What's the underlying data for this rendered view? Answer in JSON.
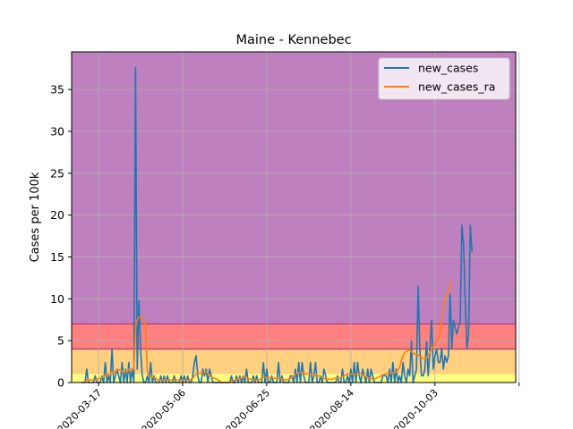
{
  "chart_data": {
    "type": "line",
    "title": "Maine - Kennebec",
    "xlabel": "",
    "ylabel": "Cases per 100k",
    "x_start": "2020-03-07",
    "x_end": "2020-11-16",
    "xlim": [
      "2020-03-01",
      "2020-11-20"
    ],
    "ylim": [
      0,
      39.5
    ],
    "yticks": [
      0,
      5,
      10,
      15,
      20,
      25,
      30,
      35
    ],
    "xticks": [
      "2020-03-17",
      "2020-05-06",
      "2020-06-25",
      "2020-08-14",
      "2020-10-03",
      "2020-11-22"
    ],
    "xtick_labels": [
      "2020-03-17",
      "2020-05-06",
      "2020-06-25",
      "2020-08-14",
      "2020-10-03",
      ""
    ],
    "grid": true,
    "legend_position": "top-right",
    "bands": [
      {
        "from": 0,
        "to": 1,
        "color": "#ffff80"
      },
      {
        "from": 1,
        "to": 4,
        "color": "#ffd080"
      },
      {
        "from": 4,
        "to": 7,
        "color": "#ff8080"
      },
      {
        "from": 7,
        "to": 39.5,
        "color": "#bf80bf"
      }
    ],
    "band_line_color": "#c0306e",
    "series": [
      {
        "name": "new_cases",
        "color": "#1f77b4",
        "values": [
          0,
          0,
          0,
          1.6,
          0,
          0,
          0,
          0,
          0.8,
          0,
          0,
          0,
          0.8,
          0,
          2.4,
          0,
          0.8,
          0,
          4.0,
          0,
          0.8,
          1.6,
          0.8,
          0,
          2.4,
          0,
          1.6,
          0,
          2.4,
          0,
          1.6,
          0,
          37.6,
          1.6,
          9.8,
          4.0,
          0.8,
          0,
          0,
          0.8,
          0,
          2.4,
          0,
          0.8,
          0,
          0,
          0,
          0.8,
          0,
          0.8,
          0,
          0.8,
          0,
          0,
          0,
          0.8,
          0,
          0,
          0,
          0.8,
          0,
          0.8,
          0,
          0.8,
          0,
          0,
          0.8,
          2.4,
          3.2,
          0.8,
          0,
          0,
          1.6,
          0.8,
          1.6,
          0,
          1.6,
          0.8,
          0,
          0,
          0,
          0,
          0,
          0,
          0,
          0,
          0,
          0,
          0,
          0.8,
          0,
          0,
          0.8,
          0,
          0.8,
          0,
          0.8,
          0,
          1.6,
          0,
          0,
          0,
          0.8,
          0,
          0.8,
          0,
          0,
          0,
          2.4,
          0,
          1.6,
          0,
          0,
          0.8,
          0,
          0,
          0,
          2.4,
          0,
          0.8,
          0,
          0,
          0,
          0,
          0.8,
          0.8,
          0,
          1.6,
          0,
          2.4,
          0,
          2.4,
          0.8,
          0,
          0,
          0,
          2.4,
          0,
          0.8,
          2.4,
          0,
          0,
          0.8,
          0,
          1.6,
          0.8,
          0,
          0,
          0,
          0,
          0,
          0,
          0.8,
          0,
          0,
          1.6,
          0,
          0,
          0.8,
          0,
          1.6,
          0,
          2.4,
          0,
          2.4,
          0.8,
          0,
          1.6,
          0.8,
          0,
          1.6,
          0,
          1.6,
          0.8,
          0,
          0,
          0,
          0,
          0,
          0.8,
          0.8,
          0.8,
          0,
          1.6,
          0,
          2.4,
          0,
          1.6,
          0,
          0.8,
          0,
          2.4,
          0.8,
          0,
          1.6,
          0.8,
          5.0,
          0,
          0.8,
          1.6,
          11.5,
          4.0,
          0.8,
          0.8,
          1.6,
          4.9,
          0.8,
          4.0,
          7.4,
          1.6,
          3.2,
          4.0,
          2.4,
          2.4,
          4.1,
          1.6,
          3.2,
          2.4,
          3.2,
          10.6,
          4.0,
          7.4,
          6.6,
          5.8,
          6.6,
          7.4,
          18.8,
          16.4,
          9.8,
          4.1,
          5.7,
          18.8,
          15.6
        ]
      },
      {
        "name": "new_cases_ra",
        "color": "#ff7f0e",
        "values": [
          0,
          0,
          0,
          0.3,
          0.3,
          0.3,
          0.3,
          0.3,
          0.3,
          0.3,
          0.5,
          0.5,
          0.6,
          0.6,
          0.9,
          0.9,
          1.0,
          1.0,
          1.4,
          1.2,
          1.3,
          1.5,
          1.5,
          1.5,
          1.4,
          1.2,
          1.4,
          1.3,
          1.6,
          1.4,
          1.4,
          1.6,
          6.6,
          7.5,
          7.8,
          7.9,
          7.8,
          7.3,
          6.7,
          1.4,
          0.8,
          0.7,
          0.6,
          0.6,
          0.5,
          0.3,
          0.3,
          0.3,
          0.3,
          0.3,
          0.3,
          0.3,
          0.3,
          0.3,
          0.3,
          0.3,
          0.3,
          0.3,
          0.3,
          0.3,
          0.3,
          0.3,
          0.3,
          0.3,
          0.3,
          0.4,
          0.5,
          0.8,
          1.0,
          1.1,
          1.1,
          1.1,
          1.2,
          1.2,
          1.3,
          1.1,
          0.8,
          0.7,
          0.6,
          0.5,
          0.4,
          0.3,
          0.2,
          0,
          0,
          0,
          0,
          0,
          0.1,
          0.2,
          0.2,
          0.3,
          0.4,
          0.4,
          0.5,
          0.5,
          0.6,
          0.6,
          0.6,
          0.5,
          0.4,
          0.4,
          0.3,
          0.3,
          0.3,
          0.3,
          0.4,
          0.5,
          0.6,
          0.6,
          0.6,
          0.6,
          0.6,
          0.6,
          0.5,
          0.5,
          0.5,
          0.5,
          0.5,
          0.4,
          0.4,
          0.3,
          0.3,
          0.4,
          0.5,
          0.6,
          0.8,
          1.0,
          1.1,
          1.2,
          1.2,
          1.2,
          1.1,
          1.0,
          1.0,
          1.0,
          1.0,
          1.0,
          0.9,
          0.8,
          0.8,
          0.8,
          0.7,
          0.6,
          0.5,
          0.4,
          0.4,
          0.4,
          0.4,
          0.4,
          0.5,
          0.5,
          0.5,
          0.5,
          0.6,
          0.7,
          0.8,
          0.9,
          1.0,
          1.0,
          1.0,
          1.0,
          1.0,
          1.0,
          1.0,
          1.0,
          1.0,
          0.9,
          0.8,
          0.7,
          0.6,
          0.5,
          0.5,
          0.4,
          0.4,
          0.5,
          0.6,
          0.7,
          0.8,
          0.9,
          1.0,
          1.0,
          1.1,
          1.1,
          1.2,
          1.2,
          1.2,
          1.3,
          1.5,
          1.8,
          2.6,
          3.2,
          3.6,
          3.7,
          3.8,
          3.9,
          3.7,
          3.5,
          3.4,
          3.4,
          3.3,
          3.1,
          3.0,
          2.9,
          2.8,
          3.0,
          3.3,
          3.6,
          4.0,
          4.3,
          4.6,
          4.9,
          5.2,
          5.8,
          7.5,
          9.0,
          10.0,
          10.5,
          10.8,
          11.4,
          12.2
        ]
      }
    ]
  }
}
